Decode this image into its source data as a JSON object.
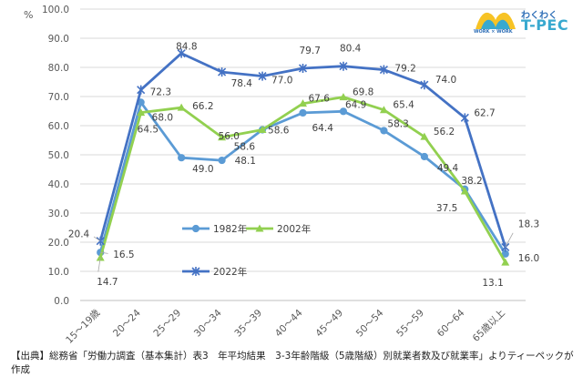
{
  "logo": {
    "top_text": "わくわく",
    "main_text": "T-PEC",
    "sub_text": "WORK × WORK"
  },
  "source_note": "【出典】総務省「労働力調査（基本集計）表3　年平均結果　3-3年齢階級（5歳階級）別就業者数及び就業率」よりティーペックが作成",
  "chart_data": {
    "type": "line",
    "title": "",
    "xlabel": "",
    "ylabel": "%",
    "ylim": [
      0,
      100
    ],
    "ytick_step": 10,
    "grid": "horizontal",
    "legend_placement": "center-left, inside plot",
    "categories": [
      "15～19歳",
      "20～24",
      "25～29",
      "30～34",
      "35～39",
      "40～44",
      "45～49",
      "50～54",
      "55～59",
      "60～64",
      "65歳以上"
    ],
    "series": [
      {
        "name": "1982年",
        "color": "#5b9bd5",
        "marker": "circle",
        "values": [
          16.5,
          68.0,
          49.0,
          48.1,
          58.6,
          64.4,
          64.9,
          58.3,
          49.4,
          38.2,
          16.0
        ]
      },
      {
        "name": "2002年",
        "color": "#92d050",
        "marker": "triangle",
        "values": [
          14.7,
          64.5,
          66.2,
          56.0,
          58.6,
          67.6,
          69.8,
          65.4,
          56.2,
          37.5,
          13.1
        ]
      },
      {
        "name": "2022年",
        "color": "#4472c4",
        "marker": "asterisk",
        "values": [
          20.4,
          72.3,
          84.8,
          78.4,
          77.0,
          79.7,
          80.4,
          79.2,
          74.0,
          62.7,
          18.3
        ]
      }
    ]
  }
}
